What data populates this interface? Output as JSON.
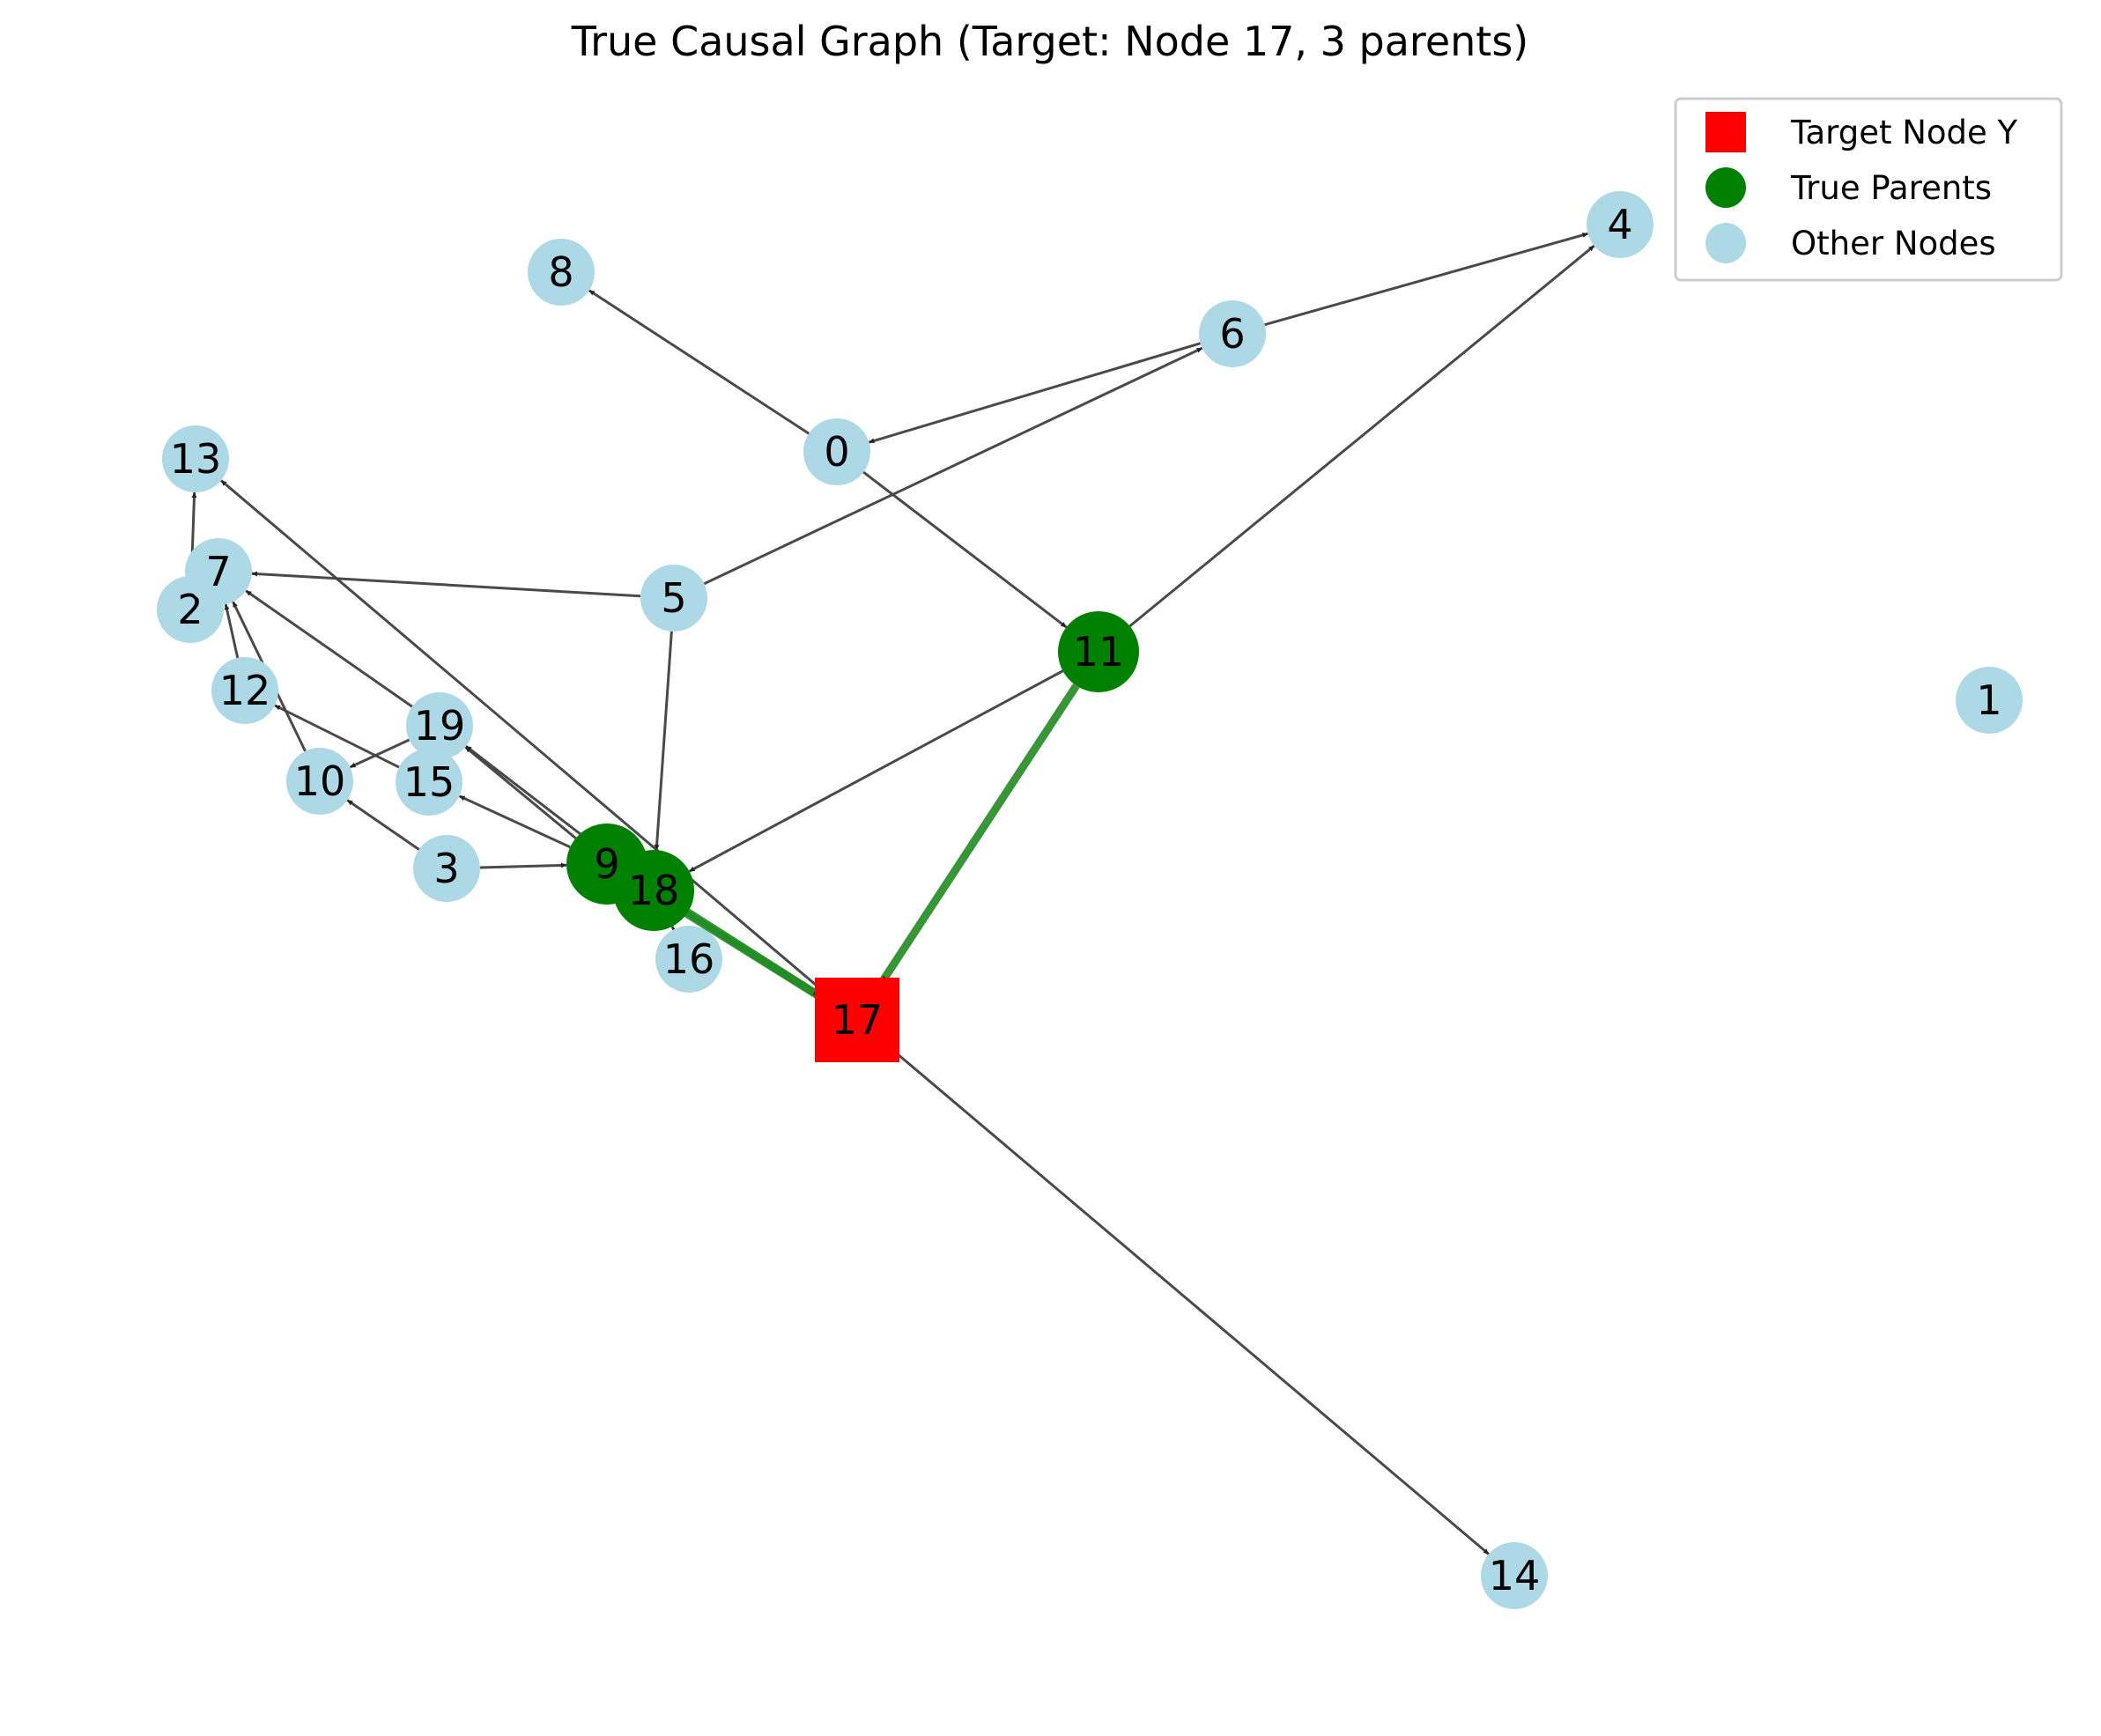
{
  "title": "True Causal Graph (Target: Node 17, 3 parents)",
  "legend": {
    "target": "Target Node Y",
    "parents": "True Parents",
    "others": "Other Nodes"
  },
  "colors": {
    "target": "#ff0000",
    "parent": "#008000",
    "other": "#add8e6",
    "edge": "#404040",
    "parent_edge": "#228b22"
  },
  "target_node": "17",
  "parent_nodes": [
    "9",
    "11",
    "18"
  ],
  "nodes": [
    "0",
    "1",
    "2",
    "3",
    "4",
    "5",
    "6",
    "7",
    "8",
    "9",
    "10",
    "11",
    "12",
    "13",
    "14",
    "15",
    "16",
    "17",
    "18",
    "19"
  ],
  "edges": [
    [
      "0",
      "8"
    ],
    [
      "0",
      "11"
    ],
    [
      "6",
      "0"
    ],
    [
      "6",
      "4"
    ],
    [
      "11",
      "4"
    ],
    [
      "5",
      "6"
    ],
    [
      "5",
      "7"
    ],
    [
      "5",
      "18"
    ],
    [
      "19",
      "10"
    ],
    [
      "11",
      "18"
    ],
    [
      "11",
      "17"
    ],
    [
      "9",
      "17"
    ],
    [
      "18",
      "17"
    ],
    [
      "17",
      "13"
    ],
    [
      "17",
      "14"
    ],
    [
      "2",
      "13"
    ],
    [
      "12",
      "7"
    ],
    [
      "10",
      "7"
    ],
    [
      "19",
      "7"
    ],
    [
      "15",
      "12"
    ],
    [
      "3",
      "10"
    ],
    [
      "3",
      "9"
    ],
    [
      "9",
      "15"
    ],
    [
      "9",
      "19"
    ],
    [
      "18",
      "19"
    ],
    [
      "16",
      "18"
    ]
  ]
}
